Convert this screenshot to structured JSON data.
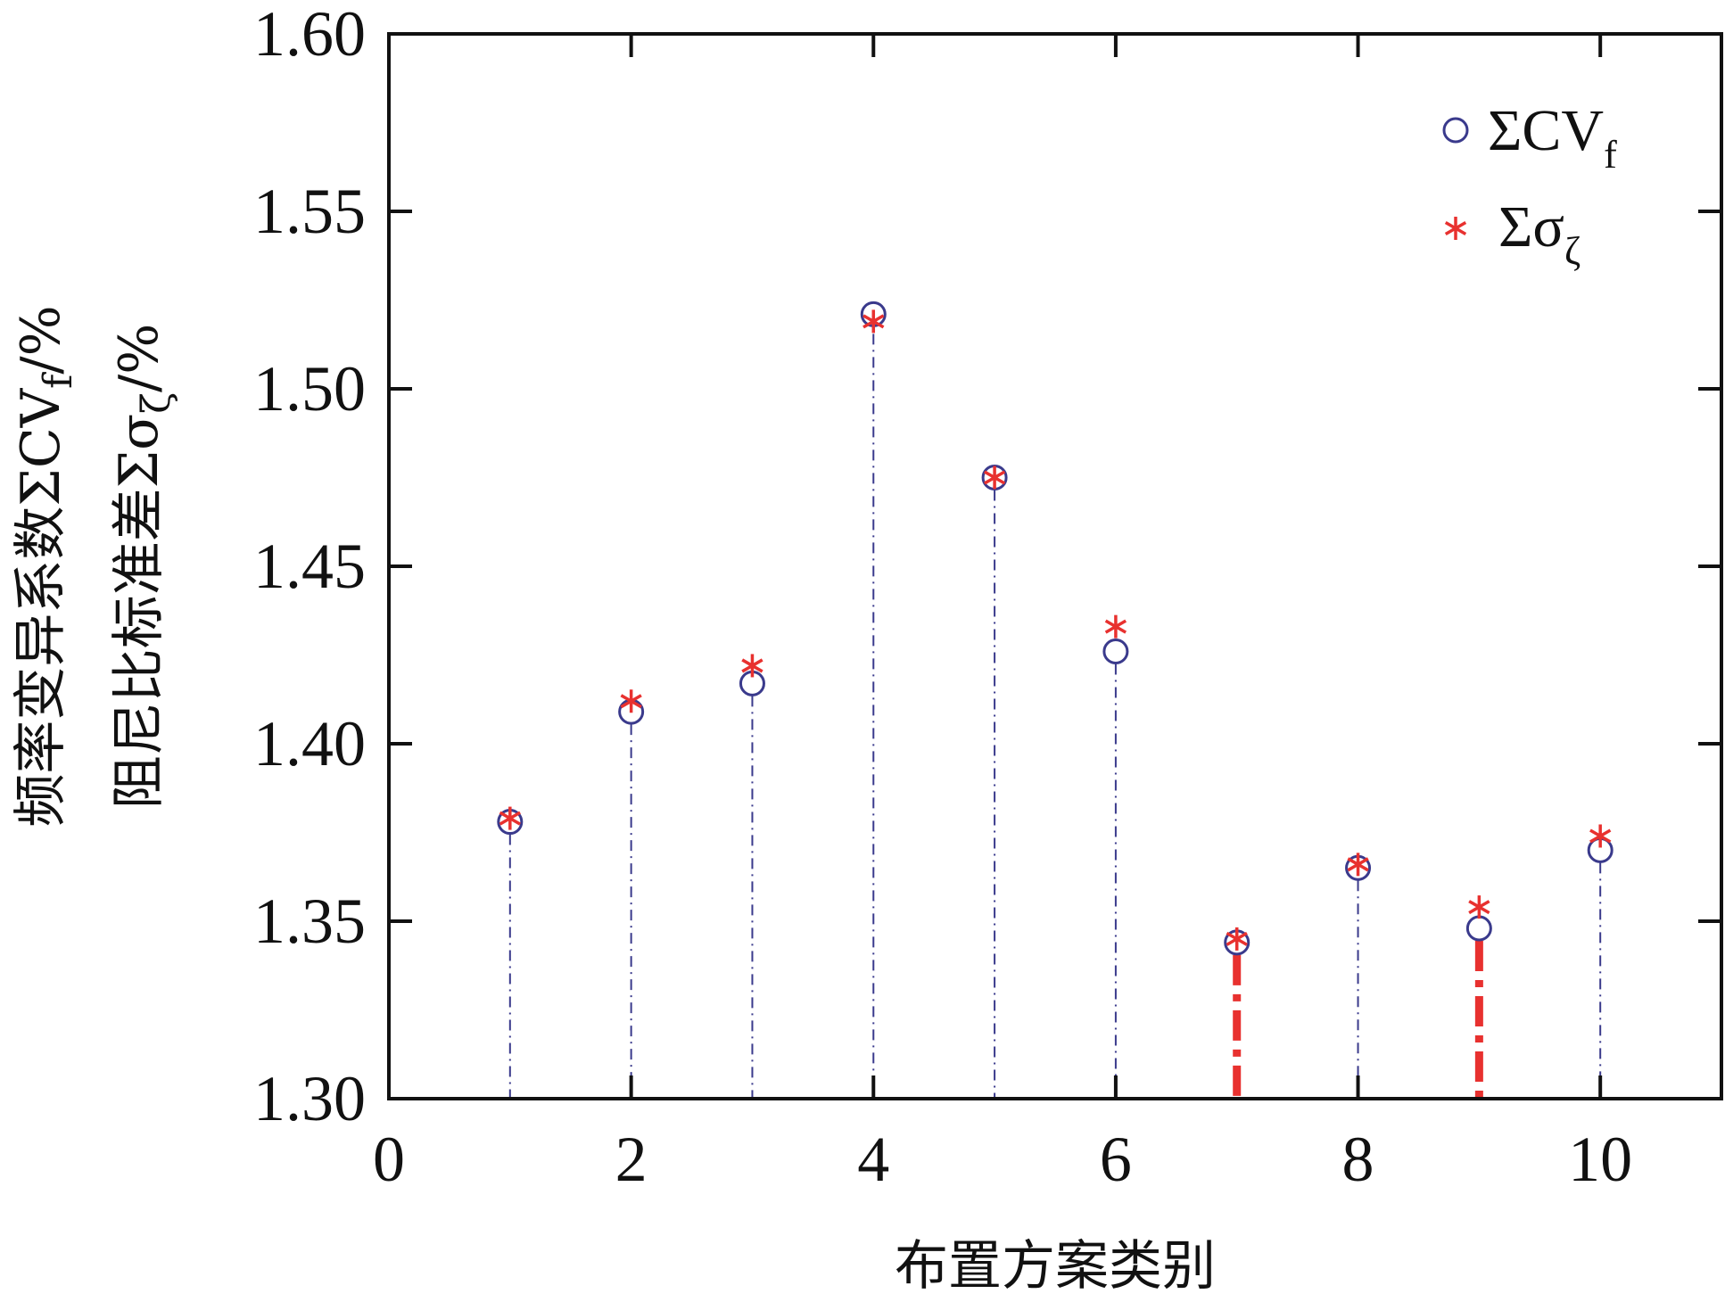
{
  "chart_data": {
    "type": "scatter",
    "title": "",
    "xlabel": "布置方案类别",
    "ylabel_line1": {
      "text": "频率变异系数ΣCV",
      "sub": "f",
      "unit": "/%"
    },
    "ylabel_line2": {
      "text": "阻尼比标准差Σσ",
      "sub": "ζ",
      "unit": "/%"
    },
    "xlim": [
      0,
      11
    ],
    "ylim": [
      1.3,
      1.6
    ],
    "xticks": [
      0,
      2,
      4,
      6,
      8,
      10
    ],
    "yticks": [
      "1.30",
      "1.35",
      "1.40",
      "1.45",
      "1.50",
      "1.55",
      "1.60"
    ],
    "x": [
      1,
      2,
      3,
      4,
      5,
      6,
      7,
      8,
      9,
      10
    ],
    "series": [
      {
        "name": "ΣCV",
        "sub": "f",
        "marker": "circle",
        "color": "#3a3a8c",
        "values": [
          1.378,
          1.409,
          1.417,
          1.521,
          1.475,
          1.426,
          1.344,
          1.365,
          1.348,
          1.37
        ]
      },
      {
        "name": "Σσ",
        "sub": "ζ",
        "marker": "asterisk",
        "color": "#e8312f",
        "values": [
          1.379,
          1.412,
          1.422,
          1.519,
          1.475,
          1.433,
          1.345,
          1.366,
          1.354,
          1.374
        ]
      }
    ],
    "highlighted_x": [
      7,
      9
    ],
    "stem_color": "#3a3a8c",
    "highlight_color": "#e8312f",
    "grid": false,
    "legend_position": "top-right"
  }
}
